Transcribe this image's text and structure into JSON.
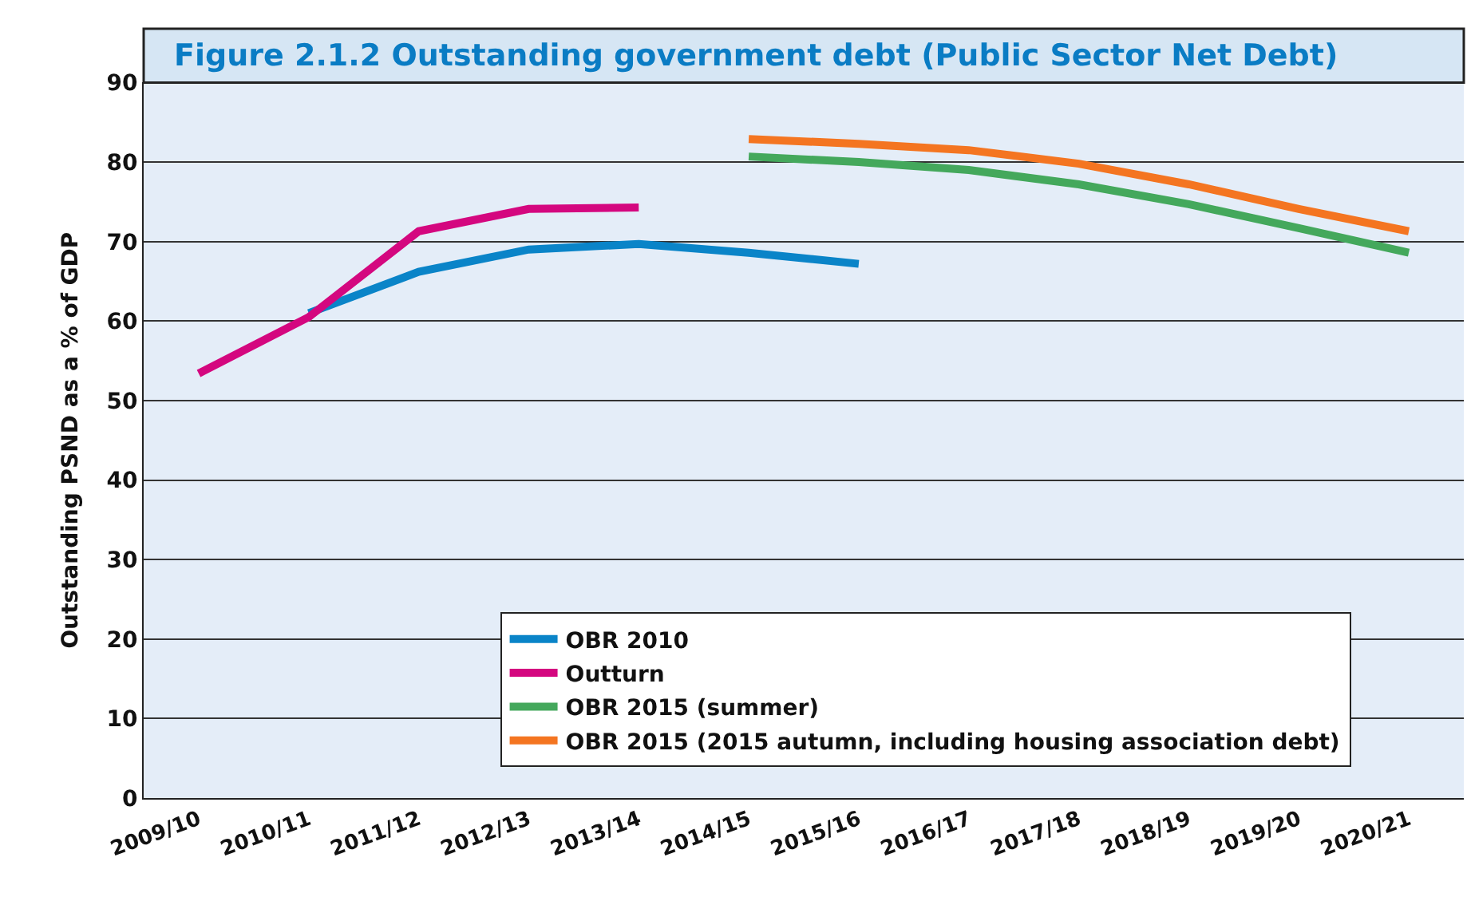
{
  "chart_data": {
    "type": "line",
    "title": "Figure 2.1.2 Outstanding government debt (Public Sector Net Debt)",
    "ylabel": "Outstanding PSND as a % of GDP",
    "categories": [
      "2009/10",
      "2010/11",
      "2011/12",
      "2012/13",
      "2013/14",
      "2014/15",
      "2015/16",
      "2016/17",
      "2017/18",
      "2018/19",
      "2019/20",
      "2020/21"
    ],
    "series": [
      {
        "name": "OBR 2010",
        "color": "#0a84c8",
        "values": [
          null,
          61,
          66.2,
          69,
          69.7,
          68.6,
          67.2,
          null,
          null,
          null,
          null,
          null
        ]
      },
      {
        "name": "Outturn",
        "color": "#d4077f",
        "values": [
          53.4,
          60.5,
          71.3,
          74.1,
          74.3,
          null,
          null,
          null,
          null,
          null,
          null,
          null
        ]
      },
      {
        "name": "OBR 2015 (summer)",
        "color": "#44a85c",
        "values": [
          null,
          null,
          null,
          null,
          null,
          80.7,
          80,
          79,
          77.2,
          74.7,
          71.7,
          68.6
        ]
      },
      {
        "name": "OBR 2015 (2015 autumn, including housing association debt)",
        "color": "#f47521",
        "values": [
          null,
          null,
          null,
          null,
          null,
          82.9,
          82.3,
          81.5,
          79.8,
          77.2,
          74.1,
          71.3
        ]
      }
    ],
    "ylim": [
      0,
      90
    ],
    "yticks": [
      0,
      10,
      20,
      30,
      40,
      50,
      60,
      70,
      80,
      90
    ],
    "grid": "y",
    "legend": "bottom",
    "marker": "none",
    "line_style": "solid"
  }
}
